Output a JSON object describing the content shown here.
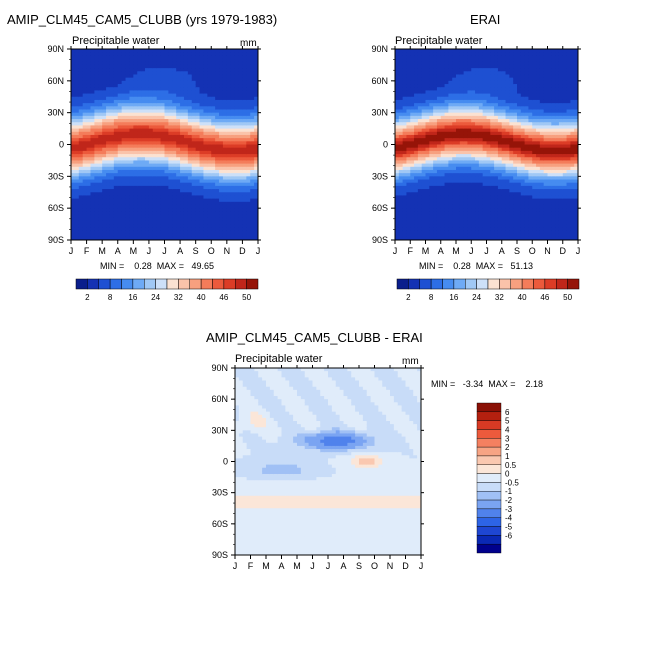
{
  "colors": {
    "cb_full": [
      "#0a1e8c",
      "#1432b4",
      "#1e50d2",
      "#2d6ee6",
      "#468cf0",
      "#6eaaf5",
      "#a0c8f5",
      "#cde0f8",
      "#fbe2d2",
      "#fac3aa",
      "#f7a07f",
      "#f47c5a",
      "#ec5a3c",
      "#dc3c26",
      "#c0261a",
      "#961408"
    ],
    "cb_diff": [
      "#00008c",
      "#0a28b4",
      "#1e46d2",
      "#2d64e6",
      "#5082ec",
      "#7aa4f2",
      "#a0c0f5",
      "#c8dcf8",
      "#e0ecfa",
      "#fbe6d8",
      "#fac8b0",
      "#f7a484",
      "#f48060",
      "#ec5a3c",
      "#d83a24",
      "#b4200f",
      "#8a1006"
    ]
  },
  "panels": {
    "model": {
      "title": "AMIP_CLM45_CAM5_CLUBB (yrs 1979-1983)",
      "subtitle": "Precipitable water",
      "units": "mm",
      "stats": "MIN =    0.28  MAX =   49.65"
    },
    "obs": {
      "title": "ERAI",
      "subtitle": "Precipitable water",
      "stats": "MIN =    0.28  MAX =   51.13"
    },
    "diff": {
      "title": "AMIP_CLM45_CAM5_CLUBB - ERAI",
      "subtitle": "Precipitable water",
      "units": "mm",
      "stats": "MIN =   -3.34  MAX =    2.18"
    }
  },
  "chart_data": [
    {
      "type": "heatmap",
      "title": "AMIP_CLM45_CAM5_CLUBB (yrs 1979-1983)",
      "subtitle": "Precipitable water",
      "units": "mm",
      "x_ticks": [
        "J",
        "F",
        "M",
        "A",
        "M",
        "J",
        "J",
        "A",
        "S",
        "O",
        "N",
        "D",
        "J"
      ],
      "y_ticks": [
        "90N",
        "60N",
        "30N",
        "0",
        "30S",
        "60S",
        "90S"
      ],
      "ylim": [
        -90,
        90
      ],
      "min": 0.28,
      "max": 49.65,
      "colorbar_labels": [
        "2",
        "8",
        "16",
        "24",
        "32",
        "40",
        "46",
        "50"
      ],
      "pattern": "zonal mean PW peaking ~49 mm near equator, shifting north to ~10N in Jul-Aug; ~2 mm at poles"
    },
    {
      "type": "heatmap",
      "title": "ERAI",
      "subtitle": "Precipitable water",
      "x_ticks": [
        "J",
        "F",
        "M",
        "A",
        "M",
        "J",
        "J",
        "A",
        "S",
        "O",
        "N",
        "D",
        "J"
      ],
      "y_ticks": [
        "90N",
        "60N",
        "30N",
        "0",
        "30S",
        "60S",
        "90S"
      ],
      "ylim": [
        -90,
        90
      ],
      "min": 0.28,
      "max": 51.13,
      "colorbar_labels": [
        "2",
        "8",
        "16",
        "24",
        "32",
        "40",
        "46",
        "50"
      ],
      "pattern": "similar to model with slightly higher tropical maximum (~51 mm)"
    },
    {
      "type": "heatmap",
      "title": "AMIP_CLM45_CAM5_CLUBB - ERAI",
      "subtitle": "Precipitable water",
      "units": "mm",
      "x_ticks": [
        "J",
        "F",
        "M",
        "A",
        "M",
        "J",
        "J",
        "A",
        "S",
        "O",
        "N",
        "D",
        "J"
      ],
      "y_ticks": [
        "90N",
        "60N",
        "30N",
        "0",
        "30S",
        "60S",
        "90S"
      ],
      "ylim": [
        -90,
        90
      ],
      "min": -3.34,
      "max": 2.18,
      "colorbar_labels": [
        "6",
        "5",
        "4",
        "3",
        "2",
        "1",
        "0.5",
        "0",
        "-0.5",
        "-1",
        "-2",
        "-3",
        "-4",
        "-5",
        "-6"
      ],
      "pattern": "mostly weak differences; negative band (-2 to -3) near 20N in Jun-Sep; positive (+0.5 to +1) near 40S and 10N"
    }
  ]
}
